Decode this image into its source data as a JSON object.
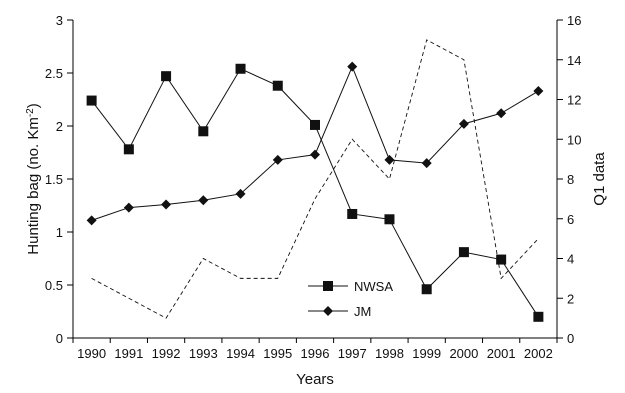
{
  "chart_data": {
    "type": "line",
    "x": [
      "1990",
      "1991",
      "1992",
      "1993",
      "1994",
      "1995",
      "1996",
      "1997",
      "1998",
      "1999",
      "2000",
      "2001",
      "2002"
    ],
    "xlabel": "Years",
    "ylabel_left": "Hunting bag (no. Km",
    "ylabel_left_superscript": "-2",
    "ylabel_left_suffix": ")",
    "ylabel_right": "Q1 data",
    "ylim_left": [
      0,
      3
    ],
    "yticks_left": [
      "0",
      "0.5",
      "1",
      "1.5",
      "2",
      "2.5",
      "3"
    ],
    "ylim_right": [
      0,
      16
    ],
    "yticks_right": [
      "0",
      "2",
      "4",
      "6",
      "8",
      "10",
      "12",
      "14",
      "16"
    ],
    "grid": false,
    "legend_position": "lower-center",
    "series": [
      {
        "name": "NWSA",
        "axis": "left",
        "marker": "square",
        "line": "solid",
        "values": [
          2.24,
          1.78,
          2.47,
          1.95,
          2.54,
          2.38,
          2.01,
          1.17,
          1.12,
          0.46,
          0.81,
          0.74,
          0.2
        ]
      },
      {
        "name": "JM",
        "axis": "left",
        "marker": "diamond",
        "line": "solid",
        "values": [
          1.11,
          1.23,
          1.26,
          1.3,
          1.36,
          1.68,
          1.73,
          2.56,
          1.68,
          1.65,
          2.02,
          2.12,
          2.33
        ]
      },
      {
        "axis": "right",
        "marker": "none",
        "line": "dashed",
        "values": [
          3,
          2,
          1,
          4,
          3,
          3,
          7,
          10,
          8,
          15,
          14,
          3,
          5
        ]
      }
    ]
  }
}
